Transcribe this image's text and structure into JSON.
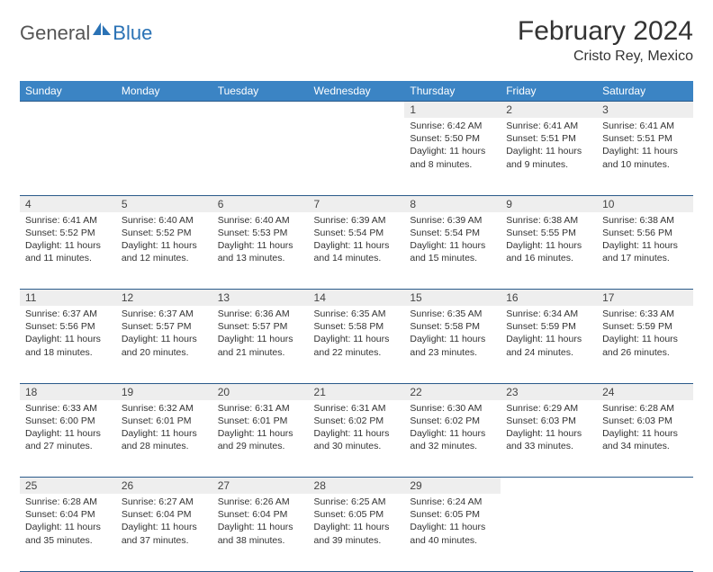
{
  "logo": {
    "text1": "General",
    "text2": "Blue"
  },
  "title": "February 2024",
  "location": "Cristo Rey, Mexico",
  "colors": {
    "header_bg": "#3b84c4",
    "header_text": "#ffffff",
    "border": "#2a5a8a",
    "daynum_bg": "#eeeeee",
    "body_text": "#333333",
    "logo_gray": "#555555",
    "logo_blue": "#2a72b5"
  },
  "day_headers": [
    "Sunday",
    "Monday",
    "Tuesday",
    "Wednesday",
    "Thursday",
    "Friday",
    "Saturday"
  ],
  "weeks": [
    [
      null,
      null,
      null,
      null,
      {
        "n": "1",
        "sr": "6:42 AM",
        "ss": "5:50 PM",
        "dl": "11 hours and 8 minutes."
      },
      {
        "n": "2",
        "sr": "6:41 AM",
        "ss": "5:51 PM",
        "dl": "11 hours and 9 minutes."
      },
      {
        "n": "3",
        "sr": "6:41 AM",
        "ss": "5:51 PM",
        "dl": "11 hours and 10 minutes."
      }
    ],
    [
      {
        "n": "4",
        "sr": "6:41 AM",
        "ss": "5:52 PM",
        "dl": "11 hours and 11 minutes."
      },
      {
        "n": "5",
        "sr": "6:40 AM",
        "ss": "5:52 PM",
        "dl": "11 hours and 12 minutes."
      },
      {
        "n": "6",
        "sr": "6:40 AM",
        "ss": "5:53 PM",
        "dl": "11 hours and 13 minutes."
      },
      {
        "n": "7",
        "sr": "6:39 AM",
        "ss": "5:54 PM",
        "dl": "11 hours and 14 minutes."
      },
      {
        "n": "8",
        "sr": "6:39 AM",
        "ss": "5:54 PM",
        "dl": "11 hours and 15 minutes."
      },
      {
        "n": "9",
        "sr": "6:38 AM",
        "ss": "5:55 PM",
        "dl": "11 hours and 16 minutes."
      },
      {
        "n": "10",
        "sr": "6:38 AM",
        "ss": "5:56 PM",
        "dl": "11 hours and 17 minutes."
      }
    ],
    [
      {
        "n": "11",
        "sr": "6:37 AM",
        "ss": "5:56 PM",
        "dl": "11 hours and 18 minutes."
      },
      {
        "n": "12",
        "sr": "6:37 AM",
        "ss": "5:57 PM",
        "dl": "11 hours and 20 minutes."
      },
      {
        "n": "13",
        "sr": "6:36 AM",
        "ss": "5:57 PM",
        "dl": "11 hours and 21 minutes."
      },
      {
        "n": "14",
        "sr": "6:35 AM",
        "ss": "5:58 PM",
        "dl": "11 hours and 22 minutes."
      },
      {
        "n": "15",
        "sr": "6:35 AM",
        "ss": "5:58 PM",
        "dl": "11 hours and 23 minutes."
      },
      {
        "n": "16",
        "sr": "6:34 AM",
        "ss": "5:59 PM",
        "dl": "11 hours and 24 minutes."
      },
      {
        "n": "17",
        "sr": "6:33 AM",
        "ss": "5:59 PM",
        "dl": "11 hours and 26 minutes."
      }
    ],
    [
      {
        "n": "18",
        "sr": "6:33 AM",
        "ss": "6:00 PM",
        "dl": "11 hours and 27 minutes."
      },
      {
        "n": "19",
        "sr": "6:32 AM",
        "ss": "6:01 PM",
        "dl": "11 hours and 28 minutes."
      },
      {
        "n": "20",
        "sr": "6:31 AM",
        "ss": "6:01 PM",
        "dl": "11 hours and 29 minutes."
      },
      {
        "n": "21",
        "sr": "6:31 AM",
        "ss": "6:02 PM",
        "dl": "11 hours and 30 minutes."
      },
      {
        "n": "22",
        "sr": "6:30 AM",
        "ss": "6:02 PM",
        "dl": "11 hours and 32 minutes."
      },
      {
        "n": "23",
        "sr": "6:29 AM",
        "ss": "6:03 PM",
        "dl": "11 hours and 33 minutes."
      },
      {
        "n": "24",
        "sr": "6:28 AM",
        "ss": "6:03 PM",
        "dl": "11 hours and 34 minutes."
      }
    ],
    [
      {
        "n": "25",
        "sr": "6:28 AM",
        "ss": "6:04 PM",
        "dl": "11 hours and 35 minutes."
      },
      {
        "n": "26",
        "sr": "6:27 AM",
        "ss": "6:04 PM",
        "dl": "11 hours and 37 minutes."
      },
      {
        "n": "27",
        "sr": "6:26 AM",
        "ss": "6:04 PM",
        "dl": "11 hours and 38 minutes."
      },
      {
        "n": "28",
        "sr": "6:25 AM",
        "ss": "6:05 PM",
        "dl": "11 hours and 39 minutes."
      },
      {
        "n": "29",
        "sr": "6:24 AM",
        "ss": "6:05 PM",
        "dl": "11 hours and 40 minutes."
      },
      null,
      null
    ]
  ],
  "labels": {
    "sunrise": "Sunrise:",
    "sunset": "Sunset:",
    "daylight": "Daylight:"
  }
}
